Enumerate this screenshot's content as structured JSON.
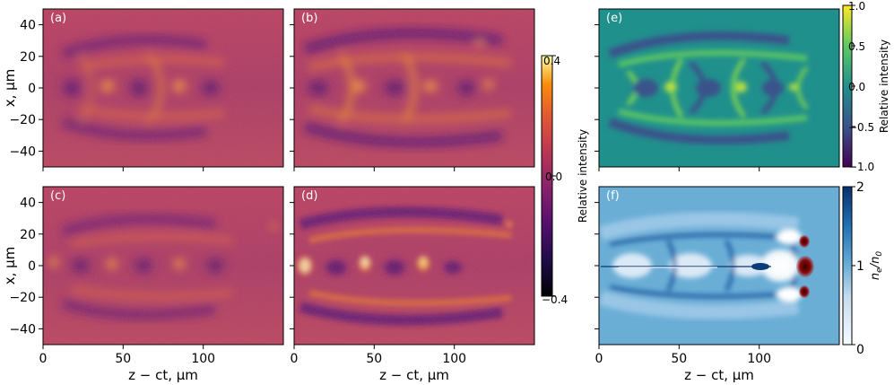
{
  "figure": {
    "panels": [
      {
        "id": "a",
        "label": "(a)"
      },
      {
        "id": "b",
        "label": "(b)"
      },
      {
        "id": "c",
        "label": "(c)"
      },
      {
        "id": "d",
        "label": "(d)"
      },
      {
        "id": "e",
        "label": "(e)"
      },
      {
        "id": "f",
        "label": "(f)"
      }
    ],
    "x_axis_label": "z − ct, µm",
    "y_axis_label": "x, µm",
    "x_ticks": [
      "0",
      "50",
      "100"
    ],
    "y_ticks": [
      "40",
      "20",
      "0",
      "−20",
      "−40"
    ],
    "colorbar_main": {
      "label": "Relative intensity",
      "ticks": [
        "0.4",
        "0.0",
        "−0.4"
      ],
      "range": [
        -0.4,
        0.4
      ],
      "colormap": "inferno"
    },
    "colorbar_e": {
      "label": "Relative intensity",
      "ticks": [
        "1.0",
        "0.5",
        "0.0",
        "−0.5",
        "−1.0"
      ],
      "range": [
        -1.0,
        1.0
      ],
      "colormap": "viridis"
    },
    "colorbar_f": {
      "label": "n_e/n_0",
      "label_main": "n",
      "label_sub1": "e",
      "label_mid": "/n",
      "label_sub2": "0",
      "ticks": [
        "2",
        "1",
        "0"
      ],
      "range": [
        0,
        2
      ],
      "colormap": "blues"
    },
    "axes": {
      "x_range": [
        0,
        150
      ],
      "y_range": [
        -50,
        50
      ]
    }
  }
}
